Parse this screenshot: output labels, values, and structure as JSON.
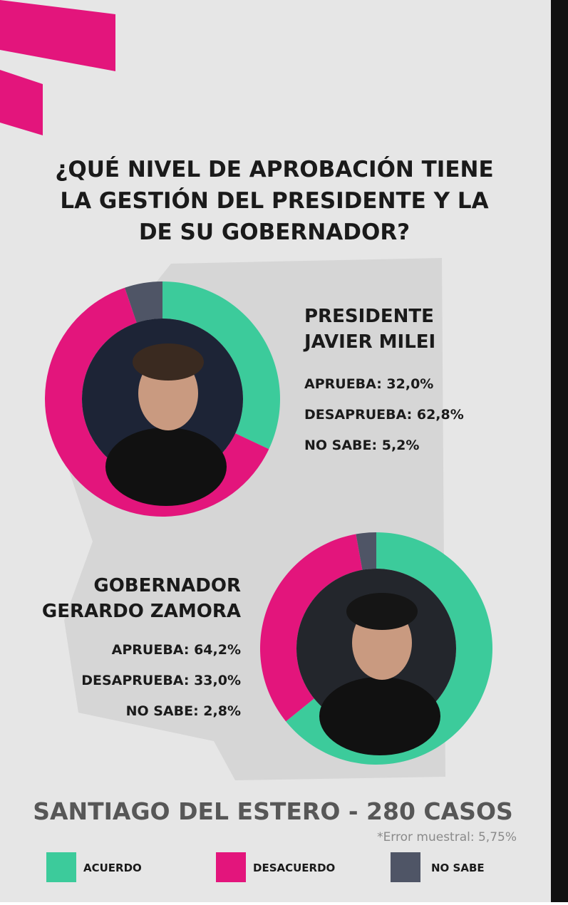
{
  "header": {
    "question": "¿QUÉ NIVEL DE APROBACIÓN TIENE LA GESTIÓN DEL PRESIDENTE Y LA DE SU GOBERNADOR?"
  },
  "chart_data": [
    {
      "type": "pie",
      "title_lines": [
        "PRESIDENTE",
        "JAVIER MILEI"
      ],
      "values": [
        32.0,
        62.8,
        5.2
      ],
      "value_labels": [
        "APRUEBA: 32,0%",
        "DESAPRUEBA: 62,8%",
        "NO SABE: 5,2%"
      ]
    },
    {
      "type": "pie",
      "title_lines": [
        "GOBERNADOR",
        "GERARDO ZAMORA"
      ],
      "values": [
        64.2,
        33.0,
        2.8
      ],
      "value_labels": [
        "APRUEBA: 64,2%",
        "DESAPRUEBA: 33,0%",
        "NO SABE: 2,8%"
      ]
    }
  ],
  "footer": {
    "sample": "SANTIAGO DEL ESTERO - 280 CASOS",
    "error": "*Error muestral: 5,75%"
  },
  "legend": {
    "labels": [
      "ACUERDO",
      "DESACUERDO",
      "NO SABE"
    ],
    "colors": [
      "#3ccb9b",
      "#e3157c",
      "#4f5566"
    ]
  }
}
